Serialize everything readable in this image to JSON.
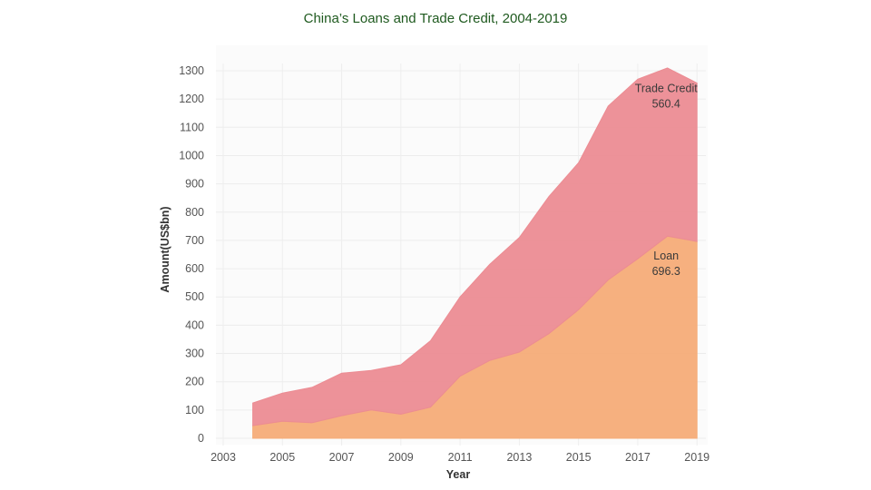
{
  "chart_data": {
    "type": "area",
    "stacked": true,
    "title": "China’s Loans and Trade Credit, 2004-2019",
    "xlabel": "Year",
    "ylabel": "Amount(US$bn)",
    "xlim": [
      2003,
      2019.3
    ],
    "ylim": [
      0,
      1300
    ],
    "x_ticks": [
      2003,
      2005,
      2007,
      2009,
      2011,
      2013,
      2015,
      2017,
      2019
    ],
    "y_ticks": [
      0,
      100,
      200,
      300,
      400,
      500,
      600,
      700,
      800,
      900,
      1000,
      1100,
      1200,
      1300
    ],
    "x": [
      2004,
      2005,
      2006,
      2007,
      2008,
      2009,
      2010,
      2011,
      2012,
      2013,
      2014,
      2015,
      2016,
      2017,
      2018,
      2019
    ],
    "series": [
      {
        "name": "Loan",
        "color": "#f5ac78",
        "values": [
          45,
          60,
          55,
          80,
          100,
          85,
          110,
          220,
          275,
          305,
          370,
          455,
          560,
          635,
          715,
          696.3
        ]
      },
      {
        "name": "Trade Credit",
        "color": "#ec8c93",
        "values": [
          80,
          100,
          125,
          150,
          140,
          175,
          235,
          280,
          340,
          405,
          485,
          520,
          615,
          635,
          595,
          560.4
        ]
      }
    ],
    "annotations": [
      {
        "series": "Trade Credit",
        "name": "Trade Credit",
        "value": "560.4"
      },
      {
        "series": "Loan",
        "name": "Loan",
        "value": "696.3"
      }
    ],
    "grid": true
  }
}
